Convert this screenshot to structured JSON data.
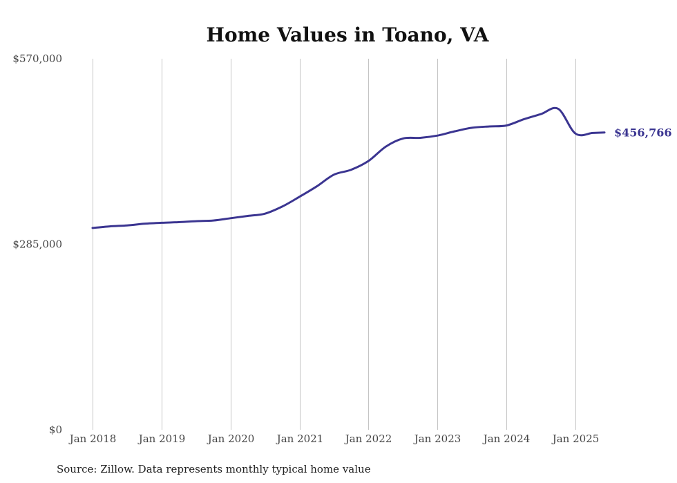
{
  "chart_data": {
    "type": "line",
    "title": "Home Values in Toano, VA",
    "xlabel": "",
    "ylabel": "",
    "source": "Source: Zillow. Data represents monthly typical home value",
    "ylim": [
      0,
      570000
    ],
    "yticks": [
      {
        "value": 0,
        "label": "$0"
      },
      {
        "value": 285000,
        "label": "$285,000"
      },
      {
        "value": 570000,
        "label": "$570,000"
      }
    ],
    "xlim": [
      2018.0,
      2025.42
    ],
    "xticks": [
      {
        "value": 2018,
        "label": "Jan 2018"
      },
      {
        "value": 2019,
        "label": "Jan 2019"
      },
      {
        "value": 2020,
        "label": "Jan 2020"
      },
      {
        "value": 2021,
        "label": "Jan 2021"
      },
      {
        "value": 2022,
        "label": "Jan 2022"
      },
      {
        "value": 2023,
        "label": "Jan 2023"
      },
      {
        "value": 2024,
        "label": "Jan 2024"
      },
      {
        "value": 2025,
        "label": "Jan 2025"
      }
    ],
    "grid": "vertical",
    "series": [
      {
        "name": "Typical home value",
        "color": "#3b3591",
        "end_label": "$456,766",
        "x": [
          2018.0,
          2018.25,
          2018.5,
          2018.75,
          2019.0,
          2019.25,
          2019.5,
          2019.75,
          2020.0,
          2020.25,
          2020.5,
          2020.75,
          2021.0,
          2021.25,
          2021.5,
          2021.75,
          2022.0,
          2022.25,
          2022.5,
          2022.75,
          2023.0,
          2023.25,
          2023.5,
          2023.75,
          2024.0,
          2024.25,
          2024.5,
          2024.75,
          2025.0,
          2025.25,
          2025.42
        ],
        "y": [
          310000,
          312500,
          314000,
          316500,
          318000,
          319000,
          320500,
          321500,
          325000,
          328500,
          332000,
          343000,
          358000,
          374000,
          392000,
          399500,
          413000,
          435000,
          447500,
          448500,
          452000,
          458500,
          464000,
          466000,
          467500,
          477000,
          485000,
          493000,
          455000,
          456000,
          456766
        ]
      }
    ]
  }
}
